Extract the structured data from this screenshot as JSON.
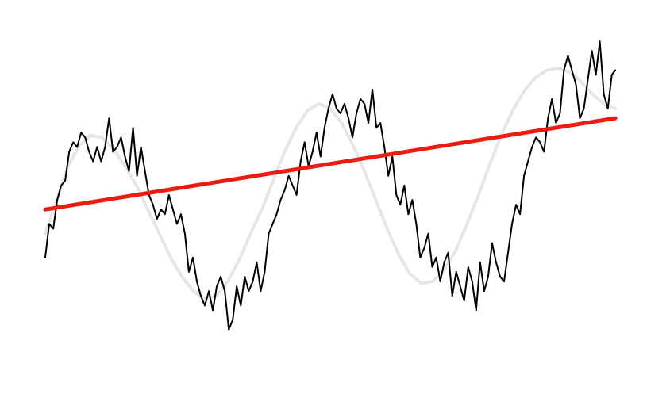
{
  "chart_data": {
    "type": "line",
    "title": "",
    "xlabel": "",
    "ylabel": "",
    "grid": false,
    "legend": "none",
    "xlim": [
      0,
      1
    ],
    "ylim": [
      -1.6,
      1.8
    ],
    "series": [
      {
        "role": "noisy-signal",
        "color": "#000000",
        "x": [
          0.0,
          0.007,
          0.014,
          0.021,
          0.028,
          0.035,
          0.042,
          0.049,
          0.056,
          0.063,
          0.07,
          0.077,
          0.084,
          0.091,
          0.098,
          0.105,
          0.112,
          0.119,
          0.126,
          0.133,
          0.14,
          0.147,
          0.154,
          0.161,
          0.168,
          0.175,
          0.182,
          0.189,
          0.196,
          0.203,
          0.21,
          0.217,
          0.224,
          0.231,
          0.238,
          0.245,
          0.252,
          0.259,
          0.266,
          0.273,
          0.28,
          0.287,
          0.294,
          0.301,
          0.308,
          0.315,
          0.322,
          0.329,
          0.336,
          0.343,
          0.35,
          0.357,
          0.364,
          0.371,
          0.378,
          0.385,
          0.392,
          0.399,
          0.406,
          0.413,
          0.42,
          0.427,
          0.434,
          0.441,
          0.448,
          0.455,
          0.462,
          0.469,
          0.476,
          0.483,
          0.49,
          0.497,
          0.504,
          0.511,
          0.518,
          0.525,
          0.532,
          0.539,
          0.546,
          0.553,
          0.56,
          0.567,
          0.574,
          0.581,
          0.588,
          0.595,
          0.602,
          0.609,
          0.616,
          0.623,
          0.63,
          0.637,
          0.644,
          0.651,
          0.658,
          0.665,
          0.672,
          0.679,
          0.686,
          0.693,
          0.7,
          0.707,
          0.714,
          0.721,
          0.728,
          0.735,
          0.742,
          0.749,
          0.756,
          0.763,
          0.77,
          0.777,
          0.784,
          0.791,
          0.798,
          0.805,
          0.812,
          0.819,
          0.826,
          0.833,
          0.84,
          0.847,
          0.854,
          0.861,
          0.868,
          0.875,
          0.882,
          0.889,
          0.896,
          0.903,
          0.91,
          0.917,
          0.924,
          0.931,
          0.938,
          0.945,
          0.952,
          0.959,
          0.966,
          0.973,
          0.98,
          0.987,
          0.994,
          1.0
        ],
        "y": [
          -0.55,
          -0.2,
          -0.25,
          0.05,
          0.2,
          0.25,
          0.55,
          0.65,
          0.6,
          0.75,
          0.7,
          0.55,
          0.45,
          0.6,
          0.45,
          0.6,
          0.9,
          0.55,
          0.6,
          0.7,
          0.5,
          0.35,
          0.8,
          0.3,
          0.6,
          0.35,
          0.1,
          0.0,
          -0.15,
          -0.05,
          -0.1,
          0.1,
          -0.05,
          -0.2,
          -0.1,
          -0.3,
          -0.7,
          -0.55,
          -0.8,
          -0.95,
          -1.05,
          -0.9,
          -1.1,
          -0.85,
          -0.75,
          -0.9,
          -1.3,
          -1.2,
          -0.85,
          -1.05,
          -0.75,
          -0.9,
          -0.8,
          -0.6,
          -0.9,
          -0.7,
          -0.3,
          -0.2,
          -0.1,
          0.05,
          0.15,
          0.3,
          0.2,
          0.1,
          0.45,
          0.65,
          0.4,
          0.55,
          0.75,
          0.5,
          0.8,
          1.0,
          1.15,
          1.0,
          0.95,
          1.05,
          0.9,
          0.7,
          0.95,
          1.1,
          1.05,
          0.85,
          1.2,
          0.8,
          0.85,
          0.6,
          0.3,
          0.5,
          0.1,
          0.0,
          0.2,
          -0.1,
          0.05,
          -0.2,
          -0.55,
          -0.45,
          -0.3,
          -0.65,
          -0.55,
          -0.8,
          -0.6,
          -0.5,
          -0.95,
          -0.7,
          -0.85,
          -1.0,
          -0.65,
          -0.8,
          -1.1,
          -0.6,
          -0.9,
          -0.75,
          -0.4,
          -0.6,
          -0.75,
          -0.8,
          -0.5,
          -0.2,
          0.0,
          -0.1,
          0.3,
          0.45,
          0.6,
          0.7,
          0.65,
          0.55,
          0.9,
          1.1,
          0.85,
          0.95,
          1.4,
          1.55,
          1.4,
          1.25,
          0.9,
          1.0,
          1.3,
          1.6,
          1.35,
          1.7,
          1.15,
          1.0,
          1.35,
          1.4
        ]
      },
      {
        "role": "underlying-signal",
        "color": "#e6e6e6",
        "x": [
          0.0,
          0.02,
          0.04,
          0.06,
          0.08,
          0.1,
          0.12,
          0.14,
          0.16,
          0.18,
          0.2,
          0.22,
          0.24,
          0.26,
          0.28,
          0.3,
          0.32,
          0.34,
          0.36,
          0.38,
          0.4,
          0.42,
          0.44,
          0.46,
          0.48,
          0.5,
          0.52,
          0.54,
          0.56,
          0.58,
          0.6,
          0.62,
          0.64,
          0.66,
          0.68,
          0.7,
          0.72,
          0.74,
          0.76,
          0.78,
          0.8,
          0.82,
          0.84,
          0.86,
          0.88,
          0.9,
          0.92,
          0.94,
          0.96,
          0.98,
          1.0
        ],
        "y": [
          -0.3,
          0.05,
          0.4,
          0.62,
          0.72,
          0.7,
          0.58,
          0.4,
          0.2,
          -0.05,
          -0.3,
          -0.55,
          -0.75,
          -0.9,
          -0.98,
          -0.95,
          -0.8,
          -0.58,
          -0.3,
          -0.05,
          0.25,
          0.55,
          0.8,
          0.98,
          1.05,
          1.0,
          0.85,
          0.62,
          0.35,
          0.05,
          -0.25,
          -0.52,
          -0.72,
          -0.82,
          -0.8,
          -0.68,
          -0.48,
          -0.2,
          0.1,
          0.42,
          0.72,
          0.98,
          1.18,
          1.32,
          1.4,
          1.42,
          1.38,
          1.28,
          1.15,
          1.05,
          1.0
        ]
      },
      {
        "role": "trend-line",
        "color": "#ee1c10",
        "x": [
          0,
          1
        ],
        "y": [
          -0.05,
          0.9
        ]
      }
    ]
  }
}
